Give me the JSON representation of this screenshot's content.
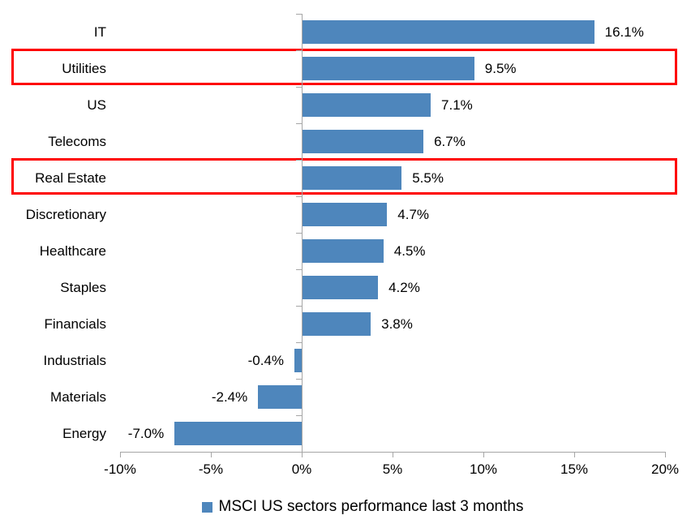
{
  "chart_data": {
    "type": "bar",
    "orientation": "horizontal",
    "title": "",
    "xlabel": "",
    "ylabel": "",
    "categories": [
      "IT",
      "Utilities",
      "US",
      "Telecoms",
      "Real Estate",
      "Discretionary",
      "Healthcare",
      "Staples",
      "Financials",
      "Industrials",
      "Materials",
      "Energy"
    ],
    "values": [
      16.1,
      9.5,
      7.1,
      6.7,
      5.5,
      4.7,
      4.5,
      4.2,
      3.8,
      -0.4,
      -2.4,
      -7.0
    ],
    "value_labels": [
      "16.1%",
      "9.5%",
      "7.1%",
      "6.7%",
      "5.5%",
      "4.7%",
      "4.5%",
      "4.2%",
      "3.8%",
      "-0.4%",
      "-2.4%",
      "-7.0%"
    ],
    "xlim": [
      -10,
      20
    ],
    "x_ticks": [
      -10,
      -5,
      0,
      5,
      10,
      15,
      20
    ],
    "x_tick_labels": [
      "-10%",
      "-5%",
      "0%",
      "5%",
      "10%",
      "15%",
      "20%"
    ],
    "grid": "off",
    "legend": "MSCI US sectors performance last 3 months",
    "legend_position": "bottom-center",
    "highlighted_categories": [
      "Utilities",
      "Real Estate"
    ],
    "colors": {
      "bar": "#4e86bc",
      "highlight_box": "#fe0000",
      "axis": "#a6a6a6",
      "text": "#000000",
      "background": "#ffffff"
    }
  }
}
